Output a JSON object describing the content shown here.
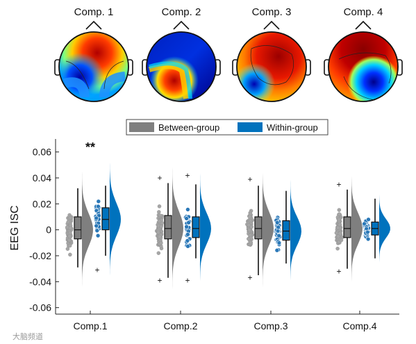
{
  "topomaps": [
    {
      "title": "Comp. 1"
    },
    {
      "title": "Comp. 2"
    },
    {
      "title": "Comp. 3"
    },
    {
      "title": "Comp. 4"
    }
  ],
  "chart_data": {
    "type": "raincloud",
    "ylabel": "EEG ISC",
    "ylim": [
      -0.065,
      0.07
    ],
    "yticks": [
      -0.06,
      -0.04,
      -0.02,
      0,
      0.02,
      0.04,
      0.06
    ],
    "ytick_labels": [
      "-0.06",
      "-0.04",
      "-0.02",
      "0",
      "0.02",
      "0.04",
      "0.06"
    ],
    "categories": [
      "Comp.1",
      "Comp.2",
      "Comp.3",
      "Comp.4"
    ],
    "legend": {
      "placement": "top-center",
      "entries": [
        "Between-group",
        "Within-group"
      ]
    },
    "colors": {
      "between": "#7f7f7f",
      "within": "#0072bd",
      "between_points": "#a6a6a6",
      "within_points": "#2a78b8"
    },
    "significance": [
      {
        "category": "Comp.1",
        "label": "**"
      }
    ],
    "series": [
      {
        "name": "Between-group",
        "boxes": [
          {
            "min": -0.029,
            "q1": -0.007,
            "median": 0.0,
            "q3": 0.01,
            "max": 0.032,
            "outliers": []
          },
          {
            "min": -0.037,
            "q1": -0.007,
            "median": 0.001,
            "q3": 0.011,
            "max": 0.036,
            "outliers": [
              0.04,
              -0.039
            ]
          },
          {
            "min": -0.035,
            "q1": -0.007,
            "median": 0.001,
            "q3": 0.01,
            "max": 0.034,
            "outliers": [
              0.039,
              -0.037
            ]
          },
          {
            "min": -0.03,
            "q1": -0.006,
            "median": 0.001,
            "q3": 0.01,
            "max": 0.031,
            "outliers": [
              0.035,
              -0.032
            ]
          }
        ]
      },
      {
        "name": "Within-group",
        "boxes": [
          {
            "min": -0.02,
            "q1": 0.0,
            "median": 0.008,
            "q3": 0.017,
            "max": 0.034,
            "outliers": [
              -0.031
            ]
          },
          {
            "min": -0.022,
            "q1": -0.006,
            "median": 0.001,
            "q3": 0.01,
            "max": 0.035,
            "outliers": [
              0.042,
              -0.039
            ]
          },
          {
            "min": -0.026,
            "q1": -0.008,
            "median": -0.001,
            "q3": 0.007,
            "max": 0.03,
            "outliers": []
          },
          {
            "min": -0.022,
            "q1": -0.004,
            "median": 0.001,
            "q3": 0.006,
            "max": 0.024,
            "outliers": []
          }
        ]
      }
    ]
  },
  "watermark": "大脑频道"
}
